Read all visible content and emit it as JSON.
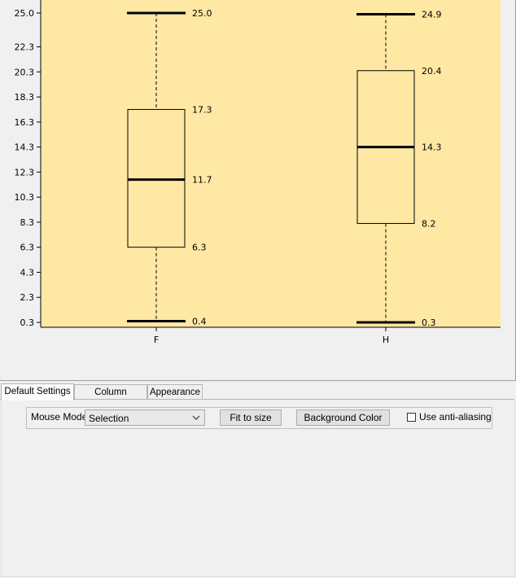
{
  "chart_data": {
    "type": "box",
    "title": "",
    "xlabel": "",
    "ylabel": "",
    "ylim": [
      0.3,
      25.0
    ],
    "y_ticks": [
      "0.3",
      "2.3",
      "4.3",
      "6.3",
      "8.3",
      "10.3",
      "12.3",
      "14.3",
      "16.3",
      "18.3",
      "20.3",
      "22.3",
      "25.0"
    ],
    "background": "#ffe8a3",
    "boxes": [
      {
        "category": "F",
        "min": 0.4,
        "q1": 6.3,
        "median": 11.7,
        "q3": 17.3,
        "max": 25.0,
        "labels": {
          "min": "0.4",
          "q1": "6.3",
          "median": "11.7",
          "q3": "17.3",
          "max": "25.0"
        }
      },
      {
        "category": "H",
        "min": 0.3,
        "q1": 8.2,
        "median": 14.3,
        "q3": 20.4,
        "max": 24.9,
        "labels": {
          "min": "0.3",
          "q1": "8.2",
          "median": "14.3",
          "q3": "20.4",
          "max": "24.9"
        }
      }
    ]
  },
  "tabs": [
    {
      "label": "Default Settings",
      "active": true
    },
    {
      "label": "Column Selection",
      "active": false
    },
    {
      "label": "Appearance",
      "active": false
    }
  ],
  "settings": {
    "mouse_mode_label": "Mouse Mode",
    "mouse_mode_value": "Selection",
    "fit_button": "Fit to size",
    "bg_button": "Background Color",
    "antialias_label": "Use anti-aliasing",
    "antialias_checked": false
  }
}
